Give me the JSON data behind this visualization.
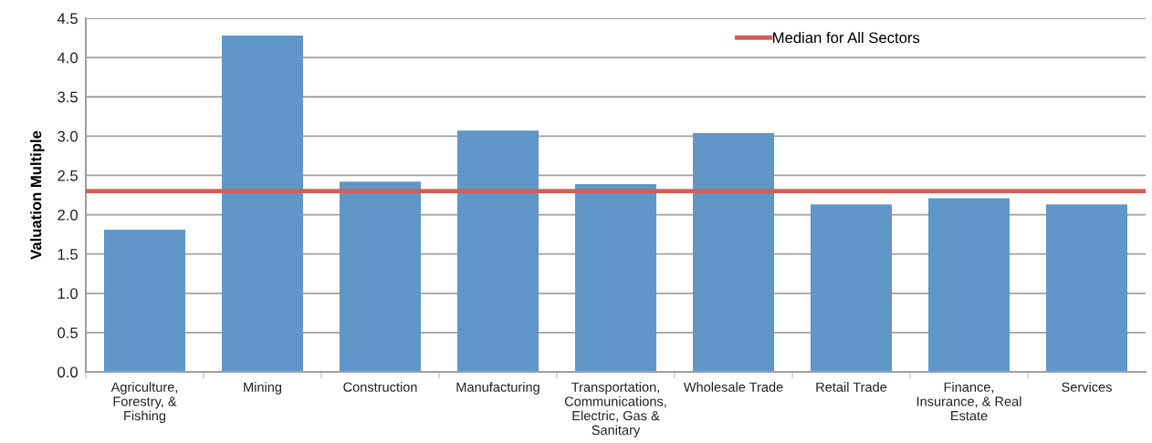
{
  "chart_data": {
    "type": "bar",
    "ylabel": "Valuation Multiple",
    "categories": [
      "Agriculture,\nForestry, &\nFishing",
      "Mining",
      "Construction",
      "Manufacturing",
      "Transportation,\nCommunications,\nElectric, Gas &\nSanitary",
      "Wholesale Trade",
      "Retail Trade",
      "Finance,\nInsurance, & Real\nEstate",
      "Services"
    ],
    "values": [
      1.81,
      4.28,
      2.42,
      3.07,
      2.39,
      3.04,
      2.13,
      2.21,
      2.13
    ],
    "color": "#6096c8",
    "ylim": [
      0,
      4.5
    ],
    "yticks": [
      {
        "value": 0,
        "label": "0.0"
      },
      {
        "value": 0.5,
        "label": "0.5"
      },
      {
        "value": 1,
        "label": "1.0"
      },
      {
        "value": 1.5,
        "label": "1.5"
      },
      {
        "value": 2,
        "label": "2.0"
      },
      {
        "value": 2.5,
        "label": "2.5"
      },
      {
        "value": 3,
        "label": "3.0"
      },
      {
        "value": 3.5,
        "label": "3.5"
      },
      {
        "value": 4,
        "label": "4.0"
      },
      {
        "value": 4.5,
        "label": "4.5"
      }
    ],
    "ref_lines": [
      {
        "axis": "y",
        "value": 2.3,
        "label": "Median for All Sectors",
        "color": "#d0605c",
        "line_style": "solid"
      }
    ],
    "grid": "y",
    "legend": "top right"
  }
}
